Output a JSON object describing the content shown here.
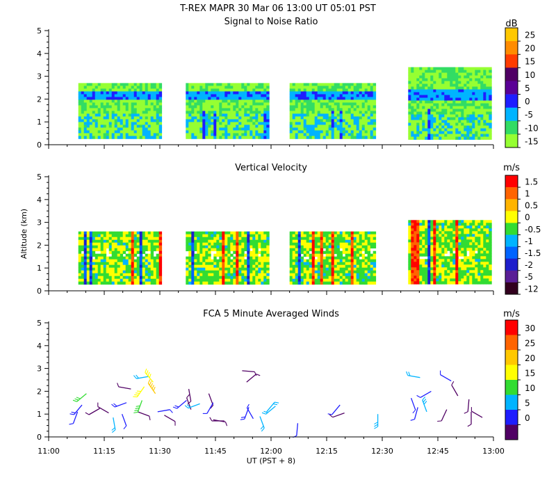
{
  "title": "T-REX   MAPR 30 Mar 06   13:00 UT   05:01   PST",
  "xaxis": {
    "label": "UT  (PST + 8)",
    "ticks": [
      "11:00",
      "11:15",
      "11:30",
      "11:45",
      "12:00",
      "12:15",
      "12:30",
      "12:45",
      "13:00"
    ],
    "range_hours": [
      11,
      13
    ]
  },
  "ylabel": "Altitude (km)",
  "chart_data": [
    {
      "type": "heatmap",
      "title": "Signal to Noise Ratio",
      "ylabel": "Altitude (km)",
      "ylim": [
        0,
        5
      ],
      "yticks": [
        "0",
        "1",
        "2",
        "3",
        "4",
        "5"
      ],
      "colorbar": {
        "unit": "dB",
        "labels": [
          "25",
          "20",
          "15",
          "10",
          "5",
          "0",
          "-5",
          "-10",
          "-15"
        ],
        "colors": [
          "#ffc800",
          "#ff8c00",
          "#ff3c00",
          "#500064",
          "#5a0096",
          "#1e1eff",
          "#00b4ff",
          "#32dc64",
          "#96ff32"
        ]
      },
      "data_coverage_segments_ut": [
        [
          "11:08",
          "11:30"
        ],
        [
          "11:37",
          "11:59"
        ],
        [
          "12:05",
          "12:28"
        ],
        [
          "12:37",
          "12:59"
        ]
      ],
      "top_altitude_km": [
        2.7,
        2.7,
        2.7,
        3.4
      ],
      "bottom_altitude_km": 0.35,
      "features": [
        "blue band near 2.2 km (SNR ~0 to -5 dB)",
        "green background (SNR -10 to -15 dB)",
        "dark blue streaks near 1 km (SNR ~5 dB)"
      ]
    },
    {
      "type": "heatmap",
      "title": "Vertical Velocity",
      "ylabel": "Altitude (km)",
      "ylim": [
        0,
        5
      ],
      "yticks": [
        "0",
        "1",
        "2",
        "3",
        "4",
        "5"
      ],
      "colorbar": {
        "unit": "m/s",
        "labels": [
          "1.5",
          "1",
          "0.5",
          "0",
          "-0.5",
          "-1",
          "-1.5",
          "-2",
          "-5",
          "-12"
        ],
        "colors": [
          "#ff0000",
          "#ff6400",
          "#ffb400",
          "#ffff00",
          "#32dc32",
          "#00b4ff",
          "#0064ff",
          "#1e1ecc",
          "#5a1e96",
          "#32001e"
        ]
      },
      "data_coverage_segments_ut": [
        [
          "11:08",
          "11:30"
        ],
        [
          "11:37",
          "11:59"
        ],
        [
          "12:05",
          "12:28"
        ],
        [
          "12:37",
          "12:59"
        ]
      ],
      "top_altitude_km": [
        2.6,
        2.6,
        2.6,
        3.1
      ],
      "bottom_altitude_km": 0.35,
      "features": [
        "mostly yellow/green (0 to -0.5 m/s)",
        "vertical streaks of red and blue"
      ]
    },
    {
      "type": "scatter",
      "title": "FCA 5 Minute Averaged Winds",
      "ylabel": "Altitude (km)",
      "ylim": [
        0,
        5
      ],
      "yticks": [
        "0",
        "1",
        "2",
        "3",
        "4",
        "5"
      ],
      "colorbar": {
        "unit": "m/s",
        "labels": [
          "30",
          "25",
          "20",
          "15",
          "10",
          "5",
          "0"
        ],
        "colors": [
          "#ff0000",
          "#ff6400",
          "#ffc800",
          "#ffff00",
          "#32dc32",
          "#00b4ff",
          "#1e1eff",
          "#500064"
        ]
      },
      "barbs": [
        {
          "t": 11.13,
          "alt": 1.1,
          "spd": 5,
          "dir": 200
        },
        {
          "t": 11.15,
          "alt": 1.4,
          "spd": 9,
          "dir": 220
        },
        {
          "t": 11.17,
          "alt": 1.9,
          "spd": 17,
          "dir": 230
        },
        {
          "t": 11.23,
          "alt": 1.25,
          "spd": 4,
          "dir": 240
        },
        {
          "t": 11.27,
          "alt": 1.05,
          "spd": 3,
          "dir": 300
        },
        {
          "t": 11.29,
          "alt": 0.85,
          "spd": 12,
          "dir": 170
        },
        {
          "t": 11.33,
          "alt": 1.0,
          "spd": 5,
          "dir": 160
        },
        {
          "t": 11.35,
          "alt": 1.5,
          "spd": 9,
          "dir": 250
        },
        {
          "t": 11.37,
          "alt": 2.1,
          "spd": 4,
          "dir": 280
        },
        {
          "t": 11.4,
          "alt": 1.1,
          "spd": 4,
          "dir": 110
        },
        {
          "t": 11.42,
          "alt": 1.6,
          "spd": 18,
          "dir": 200
        },
        {
          "t": 11.43,
          "alt": 2.2,
          "spd": 22,
          "dir": 215
        },
        {
          "t": 11.45,
          "alt": 2.65,
          "spd": 12,
          "dir": 260
        },
        {
          "t": 11.47,
          "alt": 2.4,
          "spd": 20,
          "dir": 320
        },
        {
          "t": 11.48,
          "alt": 1.9,
          "spd": 25,
          "dir": 325
        },
        {
          "t": 11.49,
          "alt": 1.1,
          "spd": 5,
          "dir": 80
        },
        {
          "t": 11.52,
          "alt": 0.95,
          "spd": 2,
          "dir": 120
        },
        {
          "t": 11.62,
          "alt": 1.6,
          "spd": 8,
          "dir": 230
        },
        {
          "t": 11.63,
          "alt": 2.1,
          "spd": 4,
          "dir": 170
        },
        {
          "t": 11.64,
          "alt": 1.2,
          "spd": 3,
          "dir": 340
        },
        {
          "t": 11.68,
          "alt": 1.45,
          "spd": 12,
          "dir": 250
        },
        {
          "t": 11.72,
          "alt": 1.9,
          "spd": 3,
          "dir": 160
        },
        {
          "t": 11.74,
          "alt": 1.5,
          "spd": 6,
          "dir": 210
        },
        {
          "t": 11.74,
          "alt": 0.75,
          "spd": 4,
          "dir": 100
        },
        {
          "t": 11.79,
          "alt": 0.7,
          "spd": 3,
          "dir": 270
        },
        {
          "t": 11.87,
          "alt": 2.9,
          "spd": 4,
          "dir": 95
        },
        {
          "t": 11.89,
          "alt": 2.4,
          "spd": 4,
          "dir": 50
        },
        {
          "t": 11.9,
          "alt": 1.3,
          "spd": 8,
          "dir": 200
        },
        {
          "t": 11.92,
          "alt": 0.8,
          "spd": 6,
          "dir": 330
        },
        {
          "t": 11.95,
          "alt": 0.9,
          "spd": 12,
          "dir": 160
        },
        {
          "t": 11.98,
          "alt": 1.1,
          "spd": 10,
          "dir": 40
        },
        {
          "t": 12.02,
          "alt": 1.35,
          "spd": 10,
          "dir": 230
        },
        {
          "t": 12.12,
          "alt": 0.6,
          "spd": 5,
          "dir": 185
        },
        {
          "t": 12.31,
          "alt": 1.4,
          "spd": 7,
          "dir": 220
        },
        {
          "t": 12.33,
          "alt": 1.05,
          "spd": 4,
          "dir": 250
        },
        {
          "t": 12.48,
          "alt": 1.0,
          "spd": 14,
          "dir": 180
        },
        {
          "t": 12.63,
          "alt": 1.7,
          "spd": 5,
          "dir": 160
        },
        {
          "t": 12.66,
          "alt": 1.3,
          "spd": 7,
          "dir": 195
        },
        {
          "t": 12.67,
          "alt": 2.6,
          "spd": 12,
          "dir": 280
        },
        {
          "t": 12.7,
          "alt": 1.1,
          "spd": 13,
          "dir": 340
        },
        {
          "t": 12.72,
          "alt": 2.0,
          "spd": 5,
          "dir": 240
        },
        {
          "t": 12.79,
          "alt": 1.2,
          "spd": 3,
          "dir": 205
        },
        {
          "t": 12.81,
          "alt": 2.45,
          "spd": 5,
          "dir": 300
        },
        {
          "t": 12.84,
          "alt": 1.8,
          "spd": 4,
          "dir": 330
        },
        {
          "t": 12.89,
          "alt": 1.65,
          "spd": 4,
          "dir": 185
        },
        {
          "t": 12.9,
          "alt": 1.1,
          "spd": 3,
          "dir": 180
        },
        {
          "t": 12.95,
          "alt": 0.85,
          "spd": 4,
          "dir": 300
        }
      ]
    }
  ]
}
